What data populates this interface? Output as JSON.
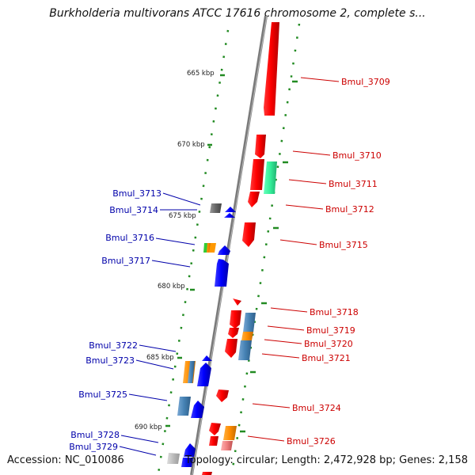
{
  "title": "Burkholderia multivorans ATCC 17616 chromosome 2, complete s...",
  "accession": "Accession: NC_010086",
  "topology": "Topology: circular; Length: 2,472,928 bp; Genes: 2,158",
  "kbp_ticks": [
    "665 kbp",
    "670 kbp",
    "675 kbp",
    "680 kbp",
    "685 kbp",
    "690 kbp"
  ],
  "genes_right": [
    {
      "label": "Bmul_3709",
      "color": "#cc0000"
    },
    {
      "label": "Bmul_3710",
      "color": "#cc0000"
    },
    {
      "label": "Bmul_3711",
      "color": "#cc0000"
    },
    {
      "label": "Bmul_3712",
      "color": "#cc0000"
    },
    {
      "label": "Bmul_3715",
      "color": "#cc0000"
    },
    {
      "label": "Bmul_3718",
      "color": "#cc0000"
    },
    {
      "label": "Bmul_3719",
      "color": "#cc0000"
    },
    {
      "label": "Bmul_3720",
      "color": "#cc0000"
    },
    {
      "label": "Bmul_3721",
      "color": "#cc0000"
    },
    {
      "label": "Bmul_3724",
      "color": "#cc0000"
    },
    {
      "label": "Bmul_3726",
      "color": "#cc0000"
    }
  ],
  "genes_left": [
    {
      "label": "Bmul_3713",
      "color": "#0000aa"
    },
    {
      "label": "Bmul_3714",
      "color": "#0000aa"
    },
    {
      "label": "Bmul_3716",
      "color": "#0000aa"
    },
    {
      "label": "Bmul_3717",
      "color": "#0000aa"
    },
    {
      "label": "Bmul_3722",
      "color": "#0000aa"
    },
    {
      "label": "Bmul_3723",
      "color": "#0000aa"
    },
    {
      "label": "Bmul_3725",
      "color": "#0000aa"
    },
    {
      "label": "Bmul_3728",
      "color": "#0000aa"
    },
    {
      "label": "Bmul_3729",
      "color": "#0000aa"
    }
  ],
  "colors": {
    "forward_strand": "#ff0000",
    "reverse_strand": "#0000ff",
    "backbone": "#888888",
    "gc_dots": "#228b22",
    "cog_orange": "#ff8c00",
    "cog_steelblue": "#4682b4",
    "cog_green": "#33cc33",
    "cog_teal": "#33ee99",
    "cog_gray": "#666666",
    "cog_silver": "#bbbbbb",
    "cog_pink": "#f08080"
  }
}
